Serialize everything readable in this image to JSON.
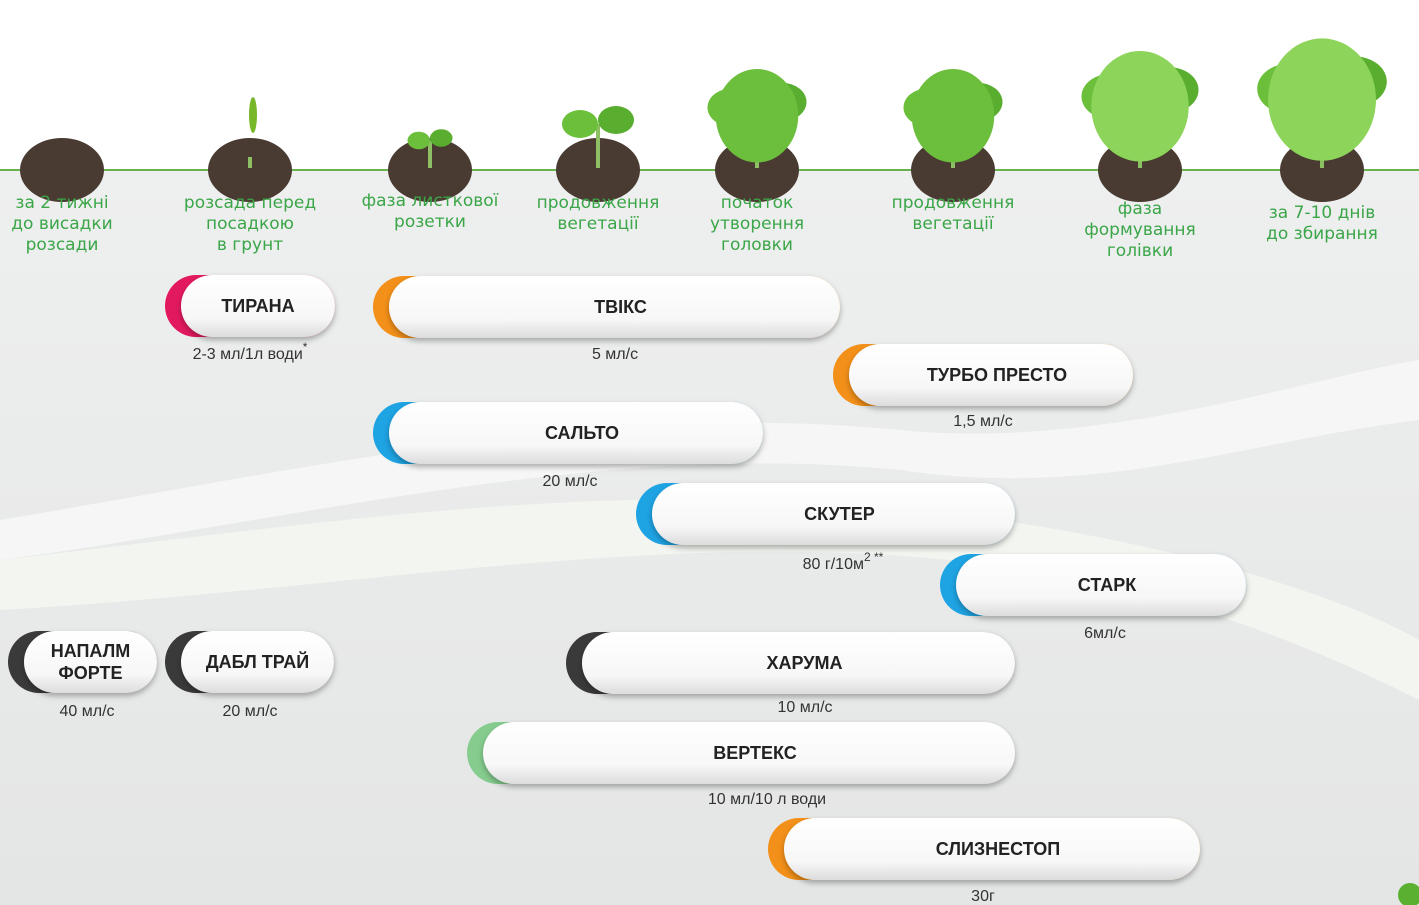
{
  "stages": [
    {
      "lines": [
        "за 2 тижні",
        "до висадки",
        "розсади"
      ]
    },
    {
      "lines": [
        "розсада перед",
        "посадкою",
        "в грунт"
      ]
    },
    {
      "lines": [
        "фаза листкової",
        "розетки"
      ]
    },
    {
      "lines": [
        "продовження",
        "вегетації"
      ]
    },
    {
      "lines": [
        "початок",
        "утворення",
        "головки"
      ]
    },
    {
      "lines": [
        "продовження",
        "вегетації"
      ]
    },
    {
      "lines": [
        "фаза",
        "формування",
        "голівки"
      ]
    },
    {
      "lines": [
        "за 7-10 днів",
        "до збирання"
      ]
    }
  ],
  "products": [
    {
      "name": [
        "ТИРАНА"
      ],
      "dose": "2-3 мл/1л води",
      "dose_sup": "*",
      "color": "#e3195f"
    },
    {
      "name": [
        "ТВІКС"
      ],
      "dose": "5 мл/с",
      "color": "#f39019"
    },
    {
      "name": [
        "ТУРБО ПРЕСТО"
      ],
      "dose": "1,5 мл/с",
      "color": "#f39019"
    },
    {
      "name": [
        "САЛЬТО"
      ],
      "dose": "20 мл/с",
      "color": "#1ea3e3"
    },
    {
      "name": [
        "СКУТЕР"
      ],
      "dose": "80 г/10м",
      "dose_sup": "2 **",
      "color": "#1ea3e3"
    },
    {
      "name": [
        "СТАРК"
      ],
      "dose": "6мл/с",
      "color": "#1ea3e3"
    },
    {
      "name": [
        "НАПАЛМ",
        "ФОРТЕ"
      ],
      "dose": "40 мл/с",
      "color": "#3a3a3a"
    },
    {
      "name": [
        "ДАБЛ ТРАЙ"
      ],
      "dose": "20 мл/с",
      "color": "#3a3a3a"
    },
    {
      "name": [
        "ХАРУМА"
      ],
      "dose": "10 мл/с",
      "color": "#3a3a3a"
    },
    {
      "name": [
        "ВЕРТЕКС"
      ],
      "dose": "10 мл/10 л води",
      "color": "#85cc8e"
    },
    {
      "name": [
        "СЛИЗНЕСТОП"
      ],
      "dose": "30г",
      "color": "#f39019"
    }
  ]
}
